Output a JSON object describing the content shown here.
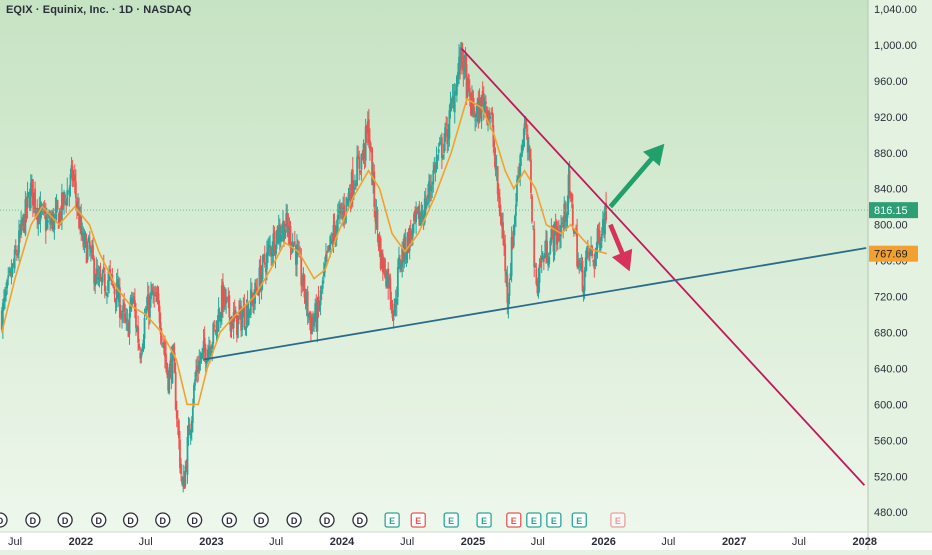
{
  "header": {
    "title": "EQIX · Equinix, Inc. · 1D · NASDAQ"
  },
  "colors": {
    "background_top": "#c6e3c3",
    "background_bottom": "#eef7ec",
    "candle_up": "#26a69a",
    "candle_down": "#ef5350",
    "moving_average": "#f2a130",
    "resistance_line": "#c2185b",
    "support_line": "#2b6b8a",
    "arrow_up": "#22a06b",
    "arrow_down": "#d6325a",
    "price_badge_current": "#2e9e75",
    "price_badge_ma": "#f2a130",
    "current_price_line": "#7bd39b"
  },
  "chart_data": {
    "type": "candlestick",
    "symbol": "EQIX",
    "company": "Equinix, Inc.",
    "interval": "1D",
    "exchange": "NASDAQ",
    "ylim": [
      458,
      1050
    ],
    "y_ticks": [
      1040,
      1000,
      960,
      920,
      880,
      840,
      800,
      760,
      720,
      680,
      640,
      600,
      560,
      520,
      480
    ],
    "y_tick_labels": [
      "1,040.00",
      "1,000.00",
      "960.00",
      "920.00",
      "880.00",
      "840.00",
      "800.00",
      "760.00",
      "720.00",
      "680.00",
      "640.00",
      "600.00",
      "560.00",
      "520.00",
      "480.00"
    ],
    "x_axis": [
      "Jul",
      "2022",
      "Jul",
      "2023",
      "Jul",
      "2024",
      "Jul",
      "2025",
      "Jul",
      "2026",
      "Jul",
      "2027",
      "Jul",
      "2028"
    ],
    "x_dates": [
      "2021-07-01",
      "2022-01-01",
      "2022-07-01",
      "2023-01-01",
      "2023-07-01",
      "2024-01-01",
      "2024-07-01",
      "2025-01-01",
      "2025-07-01",
      "2026-01-01",
      "2026-07-01",
      "2027-01-01",
      "2027-07-01",
      "2028-01-01"
    ],
    "xlim": [
      "2021-05-20",
      "2028-01-10"
    ],
    "price_path": [
      [
        "2021-05-25",
        700
      ],
      [
        "2021-07-01",
        760
      ],
      [
        "2021-08-15",
        840
      ],
      [
        "2021-09-10",
        810
      ],
      [
        "2021-10-01",
        800
      ],
      [
        "2021-11-01",
        810
      ],
      [
        "2021-12-10",
        855
      ],
      [
        "2022-01-05",
        780
      ],
      [
        "2022-01-25",
        770
      ],
      [
        "2022-02-20",
        730
      ],
      [
        "2022-03-20",
        740
      ],
      [
        "2022-04-15",
        720
      ],
      [
        "2022-05-10",
        680
      ],
      [
        "2022-05-25",
        720
      ],
      [
        "2022-06-15",
        660
      ],
      [
        "2022-07-01",
        700
      ],
      [
        "2022-07-20",
        720
      ],
      [
        "2022-08-10",
        700
      ],
      [
        "2022-09-01",
        630
      ],
      [
        "2022-09-15",
        650
      ],
      [
        "2022-09-30",
        570
      ],
      [
        "2022-10-12",
        500
      ],
      [
        "2022-10-28",
        560
      ],
      [
        "2022-11-20",
        640
      ],
      [
        "2022-12-15",
        660
      ],
      [
        "2023-01-10",
        680
      ],
      [
        "2023-02-01",
        720
      ],
      [
        "2023-02-20",
        700
      ],
      [
        "2023-03-10",
        690
      ],
      [
        "2023-04-01",
        700
      ],
      [
        "2023-05-01",
        720
      ],
      [
        "2023-06-01",
        760
      ],
      [
        "2023-07-01",
        790
      ],
      [
        "2023-07-25",
        800
      ],
      [
        "2023-08-20",
        780
      ],
      [
        "2023-09-15",
        730
      ],
      [
        "2023-10-05",
        690
      ],
      [
        "2023-10-25",
        700
      ],
      [
        "2023-11-20",
        760
      ],
      [
        "2023-12-15",
        800
      ],
      [
        "2024-01-10",
        820
      ],
      [
        "2024-02-01",
        850
      ],
      [
        "2024-03-01",
        880
      ],
      [
        "2024-03-15",
        910
      ],
      [
        "2024-04-01",
        820
      ],
      [
        "2024-04-20",
        760
      ],
      [
        "2024-05-10",
        740
      ],
      [
        "2024-05-25",
        700
      ],
      [
        "2024-06-10",
        760
      ],
      [
        "2024-07-01",
        780
      ],
      [
        "2024-07-25",
        800
      ],
      [
        "2024-08-20",
        820
      ],
      [
        "2024-09-20",
        870
      ],
      [
        "2024-10-20",
        900
      ],
      [
        "2024-11-15",
        960
      ],
      [
        "2024-12-01",
        990
      ],
      [
        "2024-12-20",
        940
      ],
      [
        "2025-01-10",
        920
      ],
      [
        "2025-02-01",
        940
      ],
      [
        "2025-02-20",
        920
      ],
      [
        "2025-03-10",
        840
      ],
      [
        "2025-03-25",
        790
      ],
      [
        "2025-04-08",
        720
      ],
      [
        "2025-04-25",
        800
      ],
      [
        "2025-05-10",
        870
      ],
      [
        "2025-05-25",
        910
      ],
      [
        "2025-06-10",
        860
      ],
      [
        "2025-06-25",
        730
      ],
      [
        "2025-07-10",
        760
      ],
      [
        "2025-07-25",
        770
      ],
      [
        "2025-08-10",
        785
      ],
      [
        "2025-08-25",
        790
      ],
      [
        "2025-09-10",
        800
      ],
      [
        "2025-09-25",
        840
      ],
      [
        "2025-10-10",
        800
      ],
      [
        "2025-10-25",
        750
      ],
      [
        "2025-11-05",
        740
      ],
      [
        "2025-11-20",
        770
      ],
      [
        "2025-12-05",
        760
      ],
      [
        "2025-12-20",
        790
      ],
      [
        "2026-01-10",
        816
      ]
    ],
    "moving_average_path": [
      [
        "2021-05-25",
        680
      ],
      [
        "2021-07-01",
        740
      ],
      [
        "2021-08-15",
        800
      ],
      [
        "2021-09-15",
        820
      ],
      [
        "2021-11-01",
        800
      ],
      [
        "2021-12-15",
        820
      ],
      [
        "2022-01-25",
        800
      ],
      [
        "2022-02-20",
        770
      ],
      [
        "2022-04-10",
        730
      ],
      [
        "2022-05-20",
        710
      ],
      [
        "2022-07-01",
        700
      ],
      [
        "2022-08-15",
        680
      ],
      [
        "2022-09-25",
        650
      ],
      [
        "2022-10-25",
        600
      ],
      [
        "2022-11-25",
        600
      ],
      [
        "2022-12-20",
        640
      ],
      [
        "2023-01-25",
        680
      ],
      [
        "2023-03-10",
        700
      ],
      [
        "2023-05-01",
        720
      ],
      [
        "2023-06-15",
        750
      ],
      [
        "2023-07-25",
        780
      ],
      [
        "2023-09-01",
        770
      ],
      [
        "2023-10-15",
        740
      ],
      [
        "2023-11-15",
        750
      ],
      [
        "2023-12-20",
        790
      ],
      [
        "2024-02-01",
        830
      ],
      [
        "2024-03-15",
        860
      ],
      [
        "2024-04-15",
        840
      ],
      [
        "2024-05-20",
        790
      ],
      [
        "2024-06-25",
        770
      ],
      [
        "2024-08-01",
        790
      ],
      [
        "2024-09-15",
        830
      ],
      [
        "2024-11-01",
        880
      ],
      [
        "2024-12-15",
        940
      ],
      [
        "2025-01-25",
        930
      ],
      [
        "2025-03-01",
        900
      ],
      [
        "2025-04-01",
        860
      ],
      [
        "2025-04-25",
        840
      ],
      [
        "2025-05-25",
        860
      ],
      [
        "2025-06-25",
        840
      ],
      [
        "2025-07-25",
        800
      ],
      [
        "2025-09-05",
        790
      ],
      [
        "2025-10-01",
        800
      ],
      [
        "2025-11-01",
        785
      ],
      [
        "2025-12-01",
        772
      ],
      [
        "2026-01-10",
        767.69
      ]
    ],
    "current_price": 816.15,
    "current_price_label": "816.15",
    "moving_average_value": 767.69,
    "moving_average_label": "767.69",
    "trendlines": [
      {
        "kind": "resistance",
        "points": [
          [
            "2024-11-30",
            996
          ],
          [
            "2027-12-31",
            510
          ]
        ]
      },
      {
        "kind": "support",
        "points": [
          [
            "2022-12-10",
            650
          ],
          [
            "2028-01-05",
            774
          ]
        ]
      }
    ],
    "arrows": [
      {
        "direction": "up",
        "from": [
          "2026-01-20",
          820
        ],
        "to": [
          "2026-06-20",
          890
        ]
      },
      {
        "direction": "down",
        "from": [
          "2026-01-20",
          800
        ],
        "to": [
          "2026-03-15",
          748
        ]
      }
    ],
    "events_row": [
      {
        "date": "2021-05-20",
        "label": "D",
        "type": "dividend"
      },
      {
        "date": "2021-08-20",
        "label": "D",
        "type": "dividend"
      },
      {
        "date": "2021-11-18",
        "label": "D",
        "type": "dividend"
      },
      {
        "date": "2022-02-20",
        "label": "D",
        "type": "dividend"
      },
      {
        "date": "2022-05-20",
        "label": "D",
        "type": "dividend"
      },
      {
        "date": "2022-08-18",
        "label": "D",
        "type": "dividend"
      },
      {
        "date": "2022-11-15",
        "label": "D",
        "type": "dividend"
      },
      {
        "date": "2023-02-20",
        "label": "D",
        "type": "dividend"
      },
      {
        "date": "2023-05-20",
        "label": "D",
        "type": "dividend"
      },
      {
        "date": "2023-08-20",
        "label": "D",
        "type": "dividend"
      },
      {
        "date": "2023-11-20",
        "label": "D",
        "type": "dividend"
      },
      {
        "date": "2024-02-20",
        "label": "D",
        "type": "dividend"
      },
      {
        "date": "2024-05-20",
        "label": "E",
        "type": "earnings"
      },
      {
        "date": "2024-08-01",
        "label": "E",
        "type": "earnings-negative"
      },
      {
        "date": "2024-11-01",
        "label": "E",
        "type": "earnings"
      },
      {
        "date": "2025-02-01",
        "label": "E",
        "type": "earnings"
      },
      {
        "date": "2025-04-25",
        "label": "E",
        "type": "earnings-negative"
      },
      {
        "date": "2025-06-20",
        "label": "E",
        "type": "earnings"
      },
      {
        "date": "2025-08-15",
        "label": "E",
        "type": "earnings"
      },
      {
        "date": "2025-10-25",
        "label": "E",
        "type": "earnings"
      },
      {
        "date": "2026-02-10",
        "label": "E",
        "type": "earnings-upcoming"
      }
    ]
  }
}
